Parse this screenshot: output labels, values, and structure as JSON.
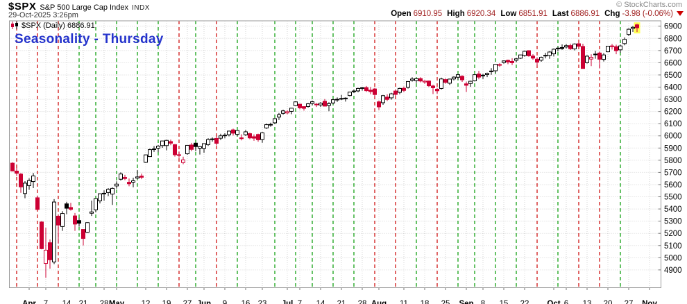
{
  "header": {
    "symbol": "$SPX",
    "name": "S&P 500 Large Cap Index",
    "exchange": "INDX",
    "timestamp": "29-Oct-2025 3:26pm",
    "copyright": "© StockCharts.com",
    "quote": {
      "open_label": "Open",
      "open": "6910.95",
      "high_label": "High",
      "high": "6920.34",
      "low_label": "Low",
      "low": "6851.91",
      "last_label": "Last",
      "last": "6886.91",
      "chg_label": "Chg",
      "chg": "-3.98 (-0.06%)",
      "direction": "down"
    }
  },
  "chart": {
    "label": "$SPX (Daily) 6886.91",
    "annotation": "Seasonality - Thursday",
    "colors": {
      "up": "#000000",
      "down": "#CC0033",
      "body_fill_up": "#FFFFFF",
      "thursday_up": "#009900",
      "thursday_down": "#CC0000",
      "grid": "#D4D4D4",
      "border": "#999999",
      "axis_text": "#000000",
      "highlight": "#FFFF55",
      "annotation": "#2433CC"
    }
  },
  "chart_data": {
    "type": "candlestick",
    "title": "$SPX (Daily) 6886.91",
    "ylabel": "",
    "xlabel": "",
    "ylim": [
      4754,
      6944
    ],
    "grid": true,
    "y_ticks": [
      4900,
      5000,
      5100,
      5200,
      5300,
      5400,
      5500,
      5600,
      5700,
      5800,
      5900,
      6000,
      6100,
      6200,
      6300,
      6400,
      6500,
      6600,
      6700,
      6800,
      6900
    ],
    "x_ticks": [
      {
        "label": "Apr",
        "i": 4,
        "bold": true
      },
      {
        "label": "7",
        "i": 8
      },
      {
        "label": "14",
        "i": 13
      },
      {
        "label": "21",
        "i": 17
      },
      {
        "label": "28",
        "i": 22
      },
      {
        "label": "May",
        "i": 25,
        "bold": true
      },
      {
        "label": "12",
        "i": 32
      },
      {
        "label": "19",
        "i": 37
      },
      {
        "label": "27",
        "i": 42
      },
      {
        "label": "Jun",
        "i": 46,
        "bold": true
      },
      {
        "label": "9",
        "i": 51
      },
      {
        "label": "16",
        "i": 56
      },
      {
        "label": "23",
        "i": 60
      },
      {
        "label": "Jul",
        "i": 66,
        "bold": true
      },
      {
        "label": "7",
        "i": 69
      },
      {
        "label": "14",
        "i": 74
      },
      {
        "label": "21",
        "i": 79
      },
      {
        "label": "28",
        "i": 84
      },
      {
        "label": "Aug",
        "i": 88,
        "bold": true
      },
      {
        "label": "11",
        "i": 94
      },
      {
        "label": "18",
        "i": 99
      },
      {
        "label": "25",
        "i": 104
      },
      {
        "label": "Sep",
        "i": 109,
        "bold": true
      },
      {
        "label": "8",
        "i": 113
      },
      {
        "label": "15",
        "i": 118
      },
      {
        "label": "22",
        "i": 123
      },
      {
        "label": "Oct",
        "i": 130,
        "bold": true
      },
      {
        "label": "6",
        "i": 133
      },
      {
        "label": "13",
        "i": 138
      },
      {
        "label": "20",
        "i": 143
      },
      {
        "label": "27",
        "i": 148
      },
      {
        "label": "Nov",
        "i": 153,
        "bold": true
      }
    ],
    "thursday_lines": [
      {
        "i": 1,
        "dir": "down"
      },
      {
        "i": 6,
        "dir": "down"
      },
      {
        "i": 11,
        "dir": "down"
      },
      {
        "i": 16,
        "dir": "up"
      },
      {
        "i": 20,
        "dir": "up"
      },
      {
        "i": 25,
        "dir": "up"
      },
      {
        "i": 30,
        "dir": "up"
      },
      {
        "i": 35,
        "dir": "up"
      },
      {
        "i": 40,
        "dir": "down"
      },
      {
        "i": 44,
        "dir": "up"
      },
      {
        "i": 49,
        "dir": "down"
      },
      {
        "i": 54,
        "dir": "up"
      },
      {
        "i": 63,
        "dir": "up"
      },
      {
        "i": 68,
        "dir": "up"
      },
      {
        "i": 72,
        "dir": "up"
      },
      {
        "i": 77,
        "dir": "up"
      },
      {
        "i": 82,
        "dir": "up"
      },
      {
        "i": 87,
        "dir": "down"
      },
      {
        "i": 92,
        "dir": "down"
      },
      {
        "i": 97,
        "dir": "up"
      },
      {
        "i": 102,
        "dir": "down"
      },
      {
        "i": 107,
        "dir": "up"
      },
      {
        "i": 111,
        "dir": "up"
      },
      {
        "i": 116,
        "dir": "up"
      },
      {
        "i": 121,
        "dir": "up"
      },
      {
        "i": 126,
        "dir": "down"
      },
      {
        "i": 131,
        "dir": "up"
      },
      {
        "i": 136,
        "dir": "down"
      },
      {
        "i": 141,
        "dir": "down"
      },
      {
        "i": 146,
        "dir": "up"
      }
    ],
    "highlight_last": true,
    "candles": [
      [
        "Mar 26",
        5776,
        5783,
        5709,
        5712
      ],
      [
        "Mar 27",
        5711,
        5737,
        5670,
        5693
      ],
      [
        "Mar 28",
        5686,
        5695,
        5533,
        5581
      ],
      [
        "Mar 31",
        5527,
        5628,
        5488,
        5612
      ],
      [
        "Apr 1",
        5592,
        5651,
        5558,
        5633
      ],
      [
        "Apr 2",
        5625,
        5695,
        5571,
        5671
      ],
      [
        "Apr 3",
        5492,
        5510,
        5390,
        5396
      ],
      [
        "Apr 4",
        5293,
        5300,
        5069,
        5074
      ],
      [
        "Apr 7",
        4953,
        5246,
        4835,
        5062
      ],
      [
        "Apr 8",
        5123,
        5150,
        4910,
        4983
      ],
      [
        "Apr 9",
        4965,
        5481,
        4948,
        5457
      ],
      [
        "Apr 10",
        5341,
        5353,
        5115,
        5268
      ],
      [
        "Apr 11",
        5256,
        5382,
        5220,
        5363
      ],
      [
        "Apr 14",
        5442,
        5459,
        5358,
        5406
      ],
      [
        "Apr 15",
        5412,
        5450,
        5386,
        5397
      ],
      [
        "Apr 16",
        5343,
        5367,
        5220,
        5276
      ],
      [
        "Apr 17",
        5305,
        5328,
        5255,
        5283
      ],
      [
        "Apr 21",
        5232,
        5234,
        5101,
        5158
      ],
      [
        "Apr 22",
        5209,
        5290,
        5205,
        5288
      ],
      [
        "Apr 23",
        5365,
        5469,
        5343,
        5376
      ],
      [
        "Apr 24",
        5393,
        5487,
        5372,
        5485
      ],
      [
        "Apr 25",
        5467,
        5528,
        5445,
        5525
      ],
      [
        "Apr 28",
        5529,
        5553,
        5468,
        5529
      ],
      [
        "Apr 29",
        5535,
        5571,
        5506,
        5561
      ],
      [
        "Apr 30",
        5522,
        5577,
        5433,
        5569
      ],
      [
        "May 1",
        5589,
        5626,
        5567,
        5604
      ],
      [
        "May 2",
        5644,
        5700,
        5633,
        5687
      ],
      [
        "May 5",
        5659,
        5680,
        5637,
        5650
      ],
      [
        "May 6",
        5619,
        5650,
        5586,
        5607
      ],
      [
        "May 7",
        5620,
        5657,
        5578,
        5631
      ],
      [
        "May 8",
        5653,
        5720,
        5644,
        5663
      ],
      [
        "May 9",
        5670,
        5690,
        5645,
        5660
      ],
      [
        "May 12",
        5783,
        5845,
        5778,
        5844
      ],
      [
        "May 13",
        5830,
        5896,
        5827,
        5887
      ],
      [
        "May 14",
        5890,
        5916,
        5868,
        5893
      ],
      [
        "May 15",
        5899,
        5925,
        5866,
        5916
      ],
      [
        "May 16",
        5920,
        5958,
        5902,
        5958
      ],
      [
        "May 19",
        5920,
        5968,
        5881,
        5963
      ],
      [
        "May 20",
        5953,
        5969,
        5923,
        5940
      ],
      [
        "May 21",
        5928,
        5933,
        5830,
        5845
      ],
      [
        "May 22",
        5845,
        5872,
        5820,
        5842
      ],
      [
        "May 23",
        5781,
        5829,
        5767,
        5803
      ],
      [
        "May 27",
        5853,
        5923,
        5845,
        5922
      ],
      [
        "May 28",
        5925,
        5942,
        5874,
        5889
      ],
      [
        "May 29",
        5940,
        5943,
        5873,
        5912
      ],
      [
        "May 30",
        5899,
        5917,
        5847,
        5912
      ],
      [
        "Jun 2",
        5897,
        5937,
        5861,
        5936
      ],
      [
        "Jun 3",
        5928,
        5981,
        5917,
        5970
      ],
      [
        "Jun 4",
        5975,
        5987,
        5953,
        5971
      ],
      [
        "Jun 5",
        5979,
        5996,
        5921,
        5939
      ],
      [
        "Jun 6",
        5981,
        6017,
        5965,
        6000
      ],
      [
        "Jun 9",
        6001,
        6022,
        5979,
        6006
      ],
      [
        "Jun 10",
        6009,
        6043,
        5996,
        6039
      ],
      [
        "Jun 11",
        6049,
        6059,
        6002,
        6022
      ],
      [
        "Jun 12",
        6012,
        6048,
        5998,
        6045
      ],
      [
        "Jun 13",
        5984,
        6013,
        5963,
        5977
      ],
      [
        "Jun 16",
        6009,
        6048,
        5999,
        6033
      ],
      [
        "Jun 17",
        6018,
        6026,
        5972,
        5983
      ],
      [
        "Jun 18",
        5993,
        6012,
        5959,
        5981
      ],
      [
        "Jun 20",
        6011,
        6018,
        5952,
        5968
      ],
      [
        "Jun 23",
        5970,
        6031,
        5943,
        6025
      ],
      [
        "Jun 24",
        6065,
        6101,
        6057,
        6092
      ],
      [
        "Jun 25",
        6094,
        6108,
        6075,
        6092
      ],
      [
        "Jun 26",
        6107,
        6146,
        6098,
        6141
      ],
      [
        "Jun 27",
        6154,
        6188,
        6130,
        6173
      ],
      [
        "Jun 30",
        6185,
        6215,
        6174,
        6205
      ],
      [
        "Jul 1",
        6188,
        6211,
        6177,
        6198
      ],
      [
        "Jul 2",
        6201,
        6228,
        6178,
        6227
      ],
      [
        "Jul 3",
        6248,
        6284,
        6243,
        6279
      ],
      [
        "Jul 7",
        6260,
        6262,
        6218,
        6230
      ],
      [
        "Jul 8",
        6240,
        6243,
        6207,
        6226
      ],
      [
        "Jul 9",
        6241,
        6269,
        6232,
        6263
      ],
      [
        "Jul 10",
        6266,
        6290,
        6251,
        6280
      ],
      [
        "Jul 11",
        6255,
        6269,
        6237,
        6260
      ],
      [
        "Jul 14",
        6254,
        6277,
        6237,
        6268
      ],
      [
        "Jul 15",
        6284,
        6302,
        6241,
        6244
      ],
      [
        "Jul 16",
        6250,
        6276,
        6202,
        6264
      ],
      [
        "Jul 17",
        6270,
        6305,
        6260,
        6297
      ],
      [
        "Jul 18",
        6300,
        6315,
        6279,
        6297
      ],
      [
        "Jul 21",
        6307,
        6336,
        6294,
        6306
      ],
      [
        "Jul 22",
        6307,
        6316,
        6281,
        6310
      ],
      [
        "Jul 23",
        6331,
        6360,
        6324,
        6359
      ],
      [
        "Jul 24",
        6368,
        6381,
        6351,
        6363
      ],
      [
        "Jul 25",
        6369,
        6395,
        6357,
        6389
      ],
      [
        "Jul 28",
        6395,
        6401,
        6371,
        6390
      ],
      [
        "Jul 29",
        6396,
        6409,
        6360,
        6371
      ],
      [
        "Jul 30",
        6375,
        6401,
        6342,
        6363
      ],
      [
        "Jul 31",
        6385,
        6394,
        6313,
        6339
      ],
      [
        "Aug 1",
        6279,
        6288,
        6213,
        6238
      ],
      [
        "Aug 4",
        6272,
        6336,
        6255,
        6330
      ],
      [
        "Aug 5",
        6318,
        6341,
        6286,
        6299
      ],
      [
        "Aug 6",
        6312,
        6353,
        6297,
        6345
      ],
      [
        "Aug 7",
        6368,
        6382,
        6324,
        6340
      ],
      [
        "Aug 8",
        6357,
        6395,
        6342,
        6389
      ],
      [
        "Aug 11",
        6390,
        6405,
        6358,
        6373
      ],
      [
        "Aug 12",
        6398,
        6447,
        6388,
        6446
      ],
      [
        "Aug 13",
        6456,
        6481,
        6445,
        6466
      ],
      [
        "Aug 14",
        6454,
        6473,
        6434,
        6469
      ],
      [
        "Aug 15",
        6470,
        6481,
        6439,
        6450
      ],
      [
        "Aug 18",
        6442,
        6457,
        6427,
        6449
      ],
      [
        "Aug 19",
        6450,
        6454,
        6401,
        6411
      ],
      [
        "Aug 20",
        6409,
        6420,
        6343,
        6395
      ],
      [
        "Aug 21",
        6383,
        6394,
        6344,
        6370
      ],
      [
        "Aug 22",
        6389,
        6478,
        6380,
        6467
      ],
      [
        "Aug 25",
        6462,
        6471,
        6428,
        6439
      ],
      [
        "Aug 26",
        6432,
        6469,
        6418,
        6466
      ],
      [
        "Aug 27",
        6467,
        6488,
        6455,
        6482
      ],
      [
        "Aug 28",
        6481,
        6508,
        6461,
        6502
      ],
      [
        "Aug 29",
        6489,
        6497,
        6443,
        6460
      ],
      [
        "Sep 2",
        6427,
        6445,
        6360,
        6415
      ],
      [
        "Sep 3",
        6430,
        6453,
        6402,
        6448
      ],
      [
        "Sep 4",
        6452,
        6503,
        6446,
        6502
      ],
      [
        "Sep 5",
        6508,
        6533,
        6464,
        6482
      ],
      [
        "Sep 8",
        6498,
        6508,
        6466,
        6495
      ],
      [
        "Sep 9",
        6503,
        6519,
        6482,
        6513
      ],
      [
        "Sep 10",
        6526,
        6555,
        6501,
        6532
      ],
      [
        "Sep 11",
        6534,
        6588,
        6516,
        6587
      ],
      [
        "Sep 12",
        6585,
        6596,
        6567,
        6584
      ],
      [
        "Sep 15",
        6602,
        6619,
        6592,
        6615
      ],
      [
        "Sep 16",
        6620,
        6626,
        6588,
        6607
      ],
      [
        "Sep 17",
        6611,
        6637,
        6581,
        6600
      ],
      [
        "Sep 18",
        6620,
        6641,
        6604,
        6632
      ],
      [
        "Sep 19",
        6637,
        6666,
        6631,
        6664
      ],
      [
        "Sep 22",
        6660,
        6699,
        6650,
        6694
      ],
      [
        "Sep 23",
        6699,
        6703,
        6649,
        6657
      ],
      [
        "Sep 24",
        6655,
        6670,
        6624,
        6638
      ],
      [
        "Sep 25",
        6629,
        6645,
        6574,
        6605
      ],
      [
        "Sep 26",
        6621,
        6651,
        6608,
        6644
      ],
      [
        "Sep 29",
        6659,
        6681,
        6636,
        6661
      ],
      [
        "Sep 30",
        6660,
        6695,
        6632,
        6688
      ],
      [
        "Oct 1",
        6673,
        6716,
        6652,
        6711
      ],
      [
        "Oct 2",
        6720,
        6731,
        6693,
        6715
      ],
      [
        "Oct 3",
        6725,
        6750,
        6706,
        6716
      ],
      [
        "Oct 6",
        6729,
        6754,
        6717,
        6740
      ],
      [
        "Oct 7",
        6741,
        6757,
        6705,
        6715
      ],
      [
        "Oct 8",
        6714,
        6759,
        6701,
        6754
      ],
      [
        "Oct 9",
        6756,
        6764,
        6724,
        6735
      ],
      [
        "Oct 10",
        6734,
        6756,
        6551,
        6553
      ],
      [
        "Oct 13",
        6601,
        6661,
        6594,
        6654
      ],
      [
        "Oct 14",
        6630,
        6669,
        6572,
        6645
      ],
      [
        "Oct 15",
        6671,
        6698,
        6633,
        6671
      ],
      [
        "Oct 16",
        6680,
        6692,
        6553,
        6629
      ],
      [
        "Oct 17",
        6627,
        6679,
        6610,
        6664
      ],
      [
        "Oct 20",
        6690,
        6738,
        6687,
        6736
      ],
      [
        "Oct 21",
        6738,
        6754,
        6708,
        6735
      ],
      [
        "Oct 22",
        6732,
        6748,
        6670,
        6699
      ],
      [
        "Oct 23",
        6706,
        6749,
        6683,
        6738
      ],
      [
        "Oct 24",
        6757,
        6807,
        6743,
        6792
      ],
      [
        "Oct 27",
        6832,
        6882,
        6820,
        6875
      ],
      [
        "Oct 28",
        6882,
        6901,
        6853,
        6891
      ],
      [
        "Oct 29",
        6911,
        6920,
        6852,
        6887
      ]
    ]
  }
}
